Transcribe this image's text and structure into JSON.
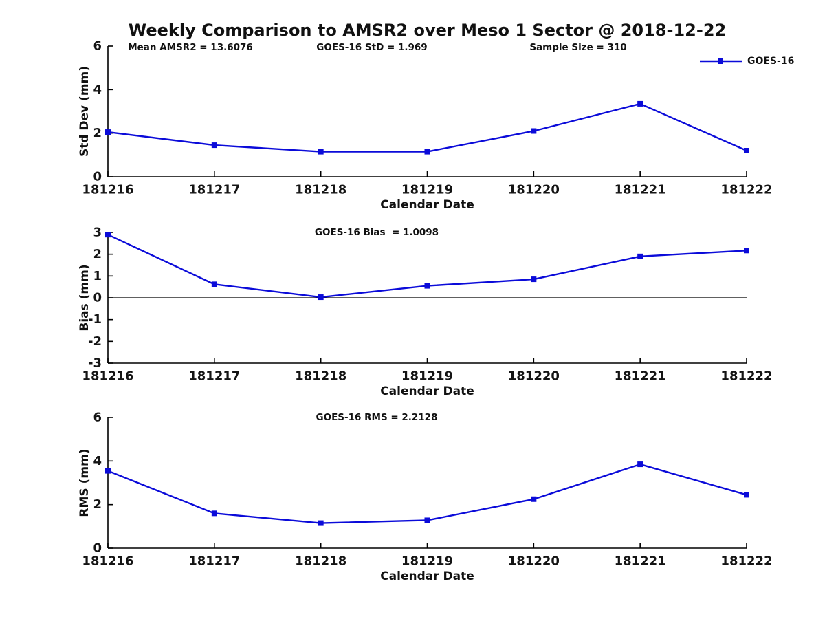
{
  "title": "Weekly Comparison to AMSR2 over Meso 1 Sector @ 2018-12-22",
  "legend": {
    "label": "GOES-16"
  },
  "colors": {
    "line": "#0b0bd9",
    "axis": "#000000",
    "text": "#141414",
    "background": "#ffffff"
  },
  "chart_data": [
    {
      "id": "stddev",
      "type": "line",
      "series_name": "GOES-16",
      "marker": "square",
      "grid": false,
      "categories": [
        "181216",
        "181217",
        "181218",
        "181219",
        "181220",
        "181221",
        "181222"
      ],
      "values": [
        2.05,
        1.45,
        1.15,
        1.15,
        2.1,
        3.35,
        1.2
      ],
      "ylabel": "Std Dev (mm)",
      "xlabel": "Calendar Date",
      "ylim": [
        0,
        6
      ],
      "yticks": [
        0,
        2,
        4,
        6
      ],
      "annotations": [
        "Mean AMSR2 = 13.6076",
        "GOES-16 StD = 1.969",
        "Sample Size = 310"
      ]
    },
    {
      "id": "bias",
      "type": "line",
      "series_name": "GOES-16",
      "marker": "square",
      "grid": false,
      "zeroline": true,
      "categories": [
        "181216",
        "181217",
        "181218",
        "181219",
        "181220",
        "181221",
        "181222"
      ],
      "values": [
        2.9,
        0.62,
        0.03,
        0.55,
        0.85,
        1.9,
        2.17
      ],
      "ylabel": "Bias (mm)",
      "xlabel": "Calendar Date",
      "ylim": [
        -3,
        3
      ],
      "yticks": [
        -3,
        -2,
        -1,
        0,
        1,
        2,
        3
      ],
      "annotations": [
        "GOES-16 Bias  = 1.0098"
      ]
    },
    {
      "id": "rms",
      "type": "line",
      "series_name": "GOES-16",
      "marker": "square",
      "grid": false,
      "categories": [
        "181216",
        "181217",
        "181218",
        "181219",
        "181220",
        "181221",
        "181222"
      ],
      "values": [
        3.55,
        1.6,
        1.15,
        1.28,
        2.25,
        3.85,
        2.45
      ],
      "ylabel": "RMS (mm)",
      "xlabel": "Calendar Date",
      "ylim": [
        0,
        6
      ],
      "yticks": [
        0,
        2,
        4,
        6
      ],
      "annotations": [
        "GOES-16 RMS = 2.2128"
      ]
    }
  ]
}
